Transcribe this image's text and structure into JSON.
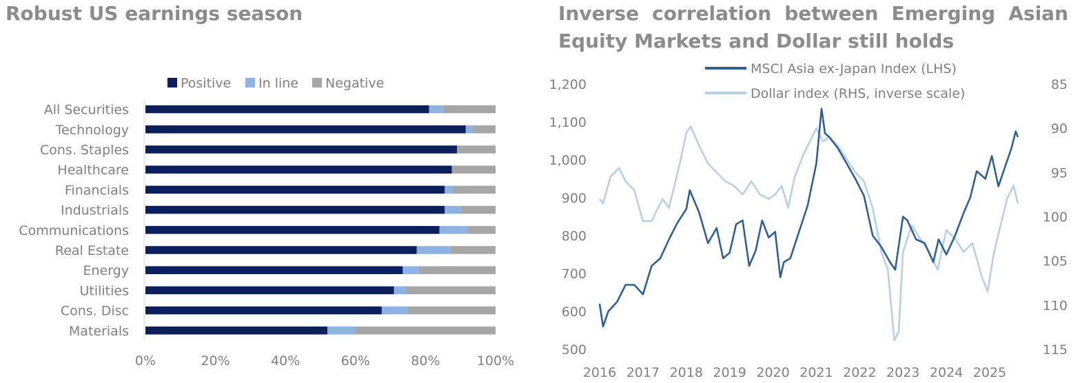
{
  "left_title": "Robust US earnings season",
  "right_title_line1": "Inverse correlation between Emerging Asian",
  "right_title_line2": "Equity Markets and Dollar still holds",
  "chart_data": [
    {
      "type": "bar",
      "orientation": "horizontal",
      "stacked": true,
      "categories": [
        "All Securities",
        "Technology",
        "Cons. Staples",
        "Healthcare",
        "Financials",
        "Industrials",
        "Communications",
        "Real Estate",
        "Energy",
        "Utilities",
        "Cons. Disc",
        "Materials"
      ],
      "series": [
        {
          "name": "Positive",
          "color": "#0b1f5c",
          "values": [
            81,
            91.5,
            89,
            87.5,
            85.5,
            85.5,
            84,
            77.5,
            73.5,
            71,
            67.5,
            52
          ]
        },
        {
          "name": "In line",
          "color": "#8db3e2",
          "values": [
            4,
            2,
            0,
            0,
            2.5,
            4.5,
            8,
            9.5,
            4.5,
            3.5,
            7.5,
            8
          ]
        },
        {
          "name": "Negative",
          "color": "#a6a6a6",
          "values": [
            15,
            6.5,
            11,
            12.5,
            12,
            10,
            8,
            13,
            22,
            25.5,
            25,
            40
          ]
        }
      ],
      "xticks": [
        "0%",
        "20%",
        "40%",
        "60%",
        "80%",
        "100%"
      ],
      "xlim": [
        0,
        100
      ],
      "legend": "top"
    },
    {
      "type": "line",
      "xticks": [
        "2016",
        "2017",
        "2018",
        "2019",
        "2020",
        "2021",
        "2022",
        "2023",
        "2024",
        "2025"
      ],
      "xlim": [
        2016,
        2025.7
      ],
      "y_left_ticks": [
        "1,200",
        "1,100",
        "1,000",
        "900",
        "800",
        "700",
        "600",
        "500"
      ],
      "ylim_left": [
        500,
        1200
      ],
      "y_right_ticks": [
        "85",
        "90",
        "95",
        "100",
        "105",
        "110",
        "115"
      ],
      "ylim_right_inverse": [
        85,
        115
      ],
      "legend": "top",
      "series": [
        {
          "name": "MSCI Asia ex-Japan Index (LHS)",
          "axis": "left",
          "color": "#2e5f99",
          "x": [
            2016.0,
            2016.08,
            2016.2,
            2016.4,
            2016.6,
            2016.8,
            2017.0,
            2017.2,
            2017.4,
            2017.6,
            2017.8,
            2018.0,
            2018.08,
            2018.3,
            2018.5,
            2018.7,
            2018.85,
            2019.0,
            2019.15,
            2019.3,
            2019.45,
            2019.6,
            2019.75,
            2019.9,
            2020.05,
            2020.17,
            2020.25,
            2020.4,
            2020.6,
            2020.8,
            2021.0,
            2021.12,
            2021.2,
            2021.3,
            2021.5,
            2021.7,
            2021.9,
            2022.1,
            2022.3,
            2022.5,
            2022.7,
            2022.82,
            2023.0,
            2023.1,
            2023.3,
            2023.5,
            2023.7,
            2023.82,
            2024.0,
            2024.2,
            2024.4,
            2024.55,
            2024.7,
            2024.9,
            2025.05,
            2025.2,
            2025.35,
            2025.5,
            2025.6,
            2025.65
          ],
          "y": [
            620,
            560,
            600,
            625,
            670,
            670,
            645,
            720,
            740,
            790,
            835,
            870,
            920,
            860,
            780,
            820,
            740,
            755,
            830,
            840,
            720,
            760,
            840,
            795,
            810,
            690,
            730,
            740,
            810,
            880,
            990,
            1135,
            1070,
            1060,
            1030,
            990,
            950,
            905,
            800,
            770,
            730,
            710,
            850,
            840,
            790,
            780,
            730,
            790,
            750,
            800,
            860,
            900,
            970,
            950,
            1010,
            930,
            980,
            1030,
            1075,
            1060
          ]
        },
        {
          "name": "Dollar index (RHS, inverse scale)",
          "axis": "right",
          "color": "#b8cfe8",
          "x": [
            2016.0,
            2016.08,
            2016.25,
            2016.45,
            2016.6,
            2016.8,
            2017.0,
            2017.2,
            2017.45,
            2017.6,
            2017.85,
            2018.0,
            2018.1,
            2018.3,
            2018.5,
            2018.7,
            2018.9,
            2019.1,
            2019.3,
            2019.5,
            2019.7,
            2019.9,
            2020.05,
            2020.2,
            2020.35,
            2020.5,
            2020.7,
            2020.9,
            2021.0,
            2021.15,
            2021.3,
            2021.5,
            2021.7,
            2021.9,
            2022.1,
            2022.3,
            2022.5,
            2022.65,
            2022.8,
            2022.9,
            2023.0,
            2023.2,
            2023.4,
            2023.6,
            2023.8,
            2024.0,
            2024.2,
            2024.4,
            2024.6,
            2024.8,
            2024.95,
            2025.1,
            2025.25,
            2025.4,
            2025.55,
            2025.65
          ],
          "y": [
            98,
            98.5,
            95.5,
            94.5,
            96,
            97,
            100.5,
            100.5,
            98,
            99,
            94,
            90.5,
            89.8,
            92,
            94,
            95,
            96,
            96.5,
            97.5,
            96,
            97.5,
            98,
            97.5,
            96.5,
            99,
            95.5,
            93,
            91,
            90,
            91.5,
            91,
            92,
            93.5,
            95,
            96,
            99,
            104,
            106,
            114,
            113,
            104,
            101,
            102.5,
            104,
            106,
            101.5,
            102.5,
            104,
            103,
            106.5,
            108.5,
            104,
            101,
            98,
            96.5,
            98.5
          ]
        }
      ]
    }
  ]
}
